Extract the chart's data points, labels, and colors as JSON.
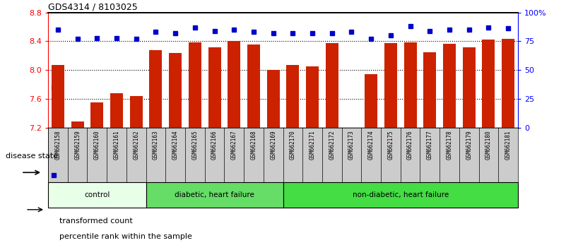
{
  "title": "GDS4314 / 8103025",
  "samples": [
    "GSM662158",
    "GSM662159",
    "GSM662160",
    "GSM662161",
    "GSM662162",
    "GSM662163",
    "GSM662164",
    "GSM662165",
    "GSM662166",
    "GSM662167",
    "GSM662168",
    "GSM662169",
    "GSM662170",
    "GSM662171",
    "GSM662172",
    "GSM662173",
    "GSM662174",
    "GSM662175",
    "GSM662176",
    "GSM662177",
    "GSM662178",
    "GSM662179",
    "GSM662180",
    "GSM662181"
  ],
  "bar_values": [
    8.07,
    7.28,
    7.55,
    7.68,
    7.64,
    8.28,
    8.24,
    8.38,
    8.32,
    8.4,
    8.35,
    8.0,
    8.07,
    8.05,
    8.37,
    7.2,
    7.94,
    8.37,
    8.38,
    8.25,
    8.36,
    8.32,
    8.42,
    8.43
  ],
  "percentile_values": [
    85,
    77,
    78,
    78,
    77,
    83,
    82,
    87,
    84,
    85,
    83,
    82,
    82,
    82,
    82,
    83,
    77,
    80,
    88,
    84,
    85,
    85,
    87,
    86
  ],
  "bar_color": "#cc2200",
  "dot_color": "#0000cc",
  "ylim_left": [
    7.2,
    8.8
  ],
  "ylim_right": [
    0,
    100
  ],
  "yticks_left": [
    7.2,
    7.6,
    8.0,
    8.4,
    8.8
  ],
  "yticks_right": [
    0,
    25,
    50,
    75,
    100
  ],
  "ytick_labels_right": [
    "0",
    "25",
    "50",
    "75",
    "100%"
  ],
  "dotted_lines": [
    7.6,
    8.0,
    8.4
  ],
  "groups": [
    {
      "label": "control",
      "start": 0,
      "end": 5,
      "color": "#e8ffe8"
    },
    {
      "label": "diabetic, heart failure",
      "start": 5,
      "end": 12,
      "color": "#66dd66"
    },
    {
      "label": "non-diabetic, heart failure",
      "start": 12,
      "end": 24,
      "color": "#44dd44"
    }
  ],
  "legend_items": [
    {
      "label": "transformed count",
      "color": "#cc2200"
    },
    {
      "label": "percentile rank within the sample",
      "color": "#0000cc"
    }
  ],
  "disease_state_label": "disease state",
  "xtick_bg": "#cccccc",
  "figsize": [
    8.01,
    3.54
  ],
  "dpi": 100
}
